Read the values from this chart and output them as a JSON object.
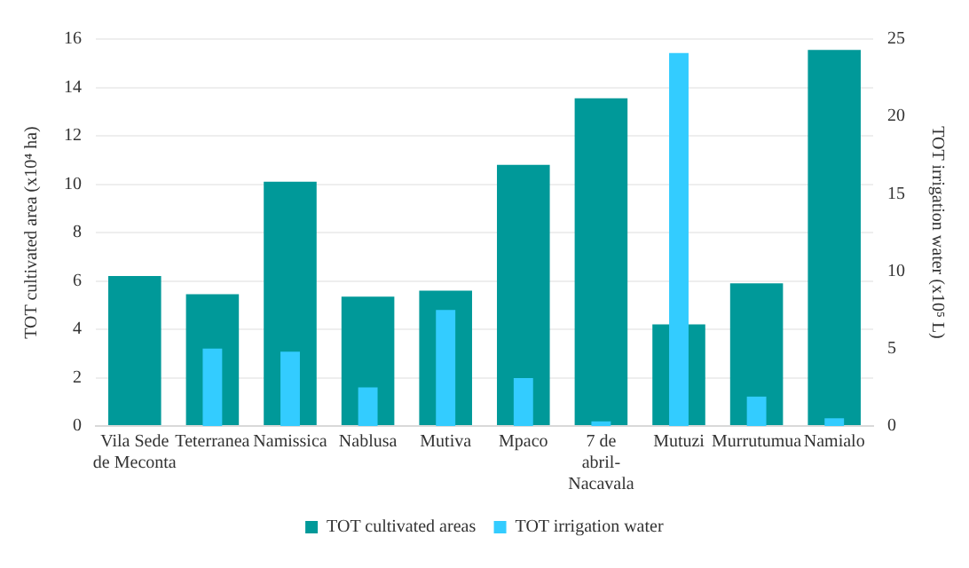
{
  "chart_data": {
    "type": "bar",
    "categories": [
      "Vila Sede de Meconta",
      "Teterranea",
      "Namissica",
      "Nablusa",
      "Mutiva",
      "Mpaco",
      "7 de abril-Nacavala",
      "Mutuzi",
      "Murrutumua",
      "Namialo"
    ],
    "series": [
      {
        "name": "TOT cultivated areas",
        "color": "#009999",
        "values": [
          6.2,
          5.45,
          10.1,
          5.35,
          5.6,
          10.8,
          13.55,
          4.2,
          5.9,
          15.55
        ]
      },
      {
        "name": "TOT irrigation water",
        "color": "#33ccff",
        "axis": "y2",
        "values": [
          0,
          5.0,
          4.8,
          2.5,
          7.5,
          3.1,
          0.3,
          24.1,
          1.9,
          0.5
        ]
      }
    ],
    "ylabel": "TOT cultivated area (x10⁴ ha)",
    "y2label": "TOT irrigation water (x10⁵ L)",
    "ylim": [
      0,
      16
    ],
    "yticks": [
      0,
      2,
      4,
      6,
      8,
      10,
      12,
      14,
      16
    ],
    "y2lim": [
      0,
      25
    ],
    "y2ticks": [
      0,
      5,
      10,
      15,
      20,
      25
    ],
    "grid": "y",
    "legend": "bottom"
  }
}
